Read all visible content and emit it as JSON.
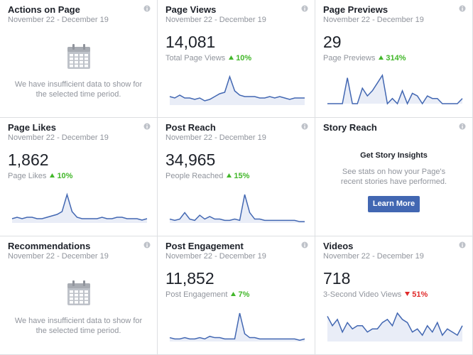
{
  "cards": [
    {
      "title": "Actions on Page",
      "date": "November 22 - December 19",
      "message": "We have insufficient data to show for the selected time period."
    },
    {
      "title": "Page Views",
      "date": "November 22 - December 19",
      "value": "14,081",
      "label": "Total Page Views",
      "change": "10%",
      "trend": "up",
      "spark": [
        6,
        5,
        7,
        5,
        5,
        4,
        5,
        3,
        4,
        6,
        8,
        9,
        20,
        10,
        7,
        6,
        6,
        6,
        5,
        5,
        6,
        5,
        6,
        5,
        4,
        5,
        5,
        5
      ]
    },
    {
      "title": "Page Previews",
      "date": "November 22 - December 19",
      "value": "29",
      "label": "Page Previews",
      "change": "314%",
      "trend": "up",
      "spark": [
        0,
        0,
        0,
        0,
        10,
        0,
        0,
        6,
        3,
        5,
        8,
        11,
        0,
        2,
        0,
        5,
        0,
        4,
        3,
        0,
        3,
        2,
        2,
        0,
        0,
        0,
        0,
        2
      ]
    },
    {
      "title": "Page Likes",
      "date": "November 22 - December 19",
      "value": "1,862",
      "label": "Page Likes",
      "change": "10%",
      "trend": "up",
      "spark": [
        3,
        4,
        3,
        4,
        4,
        3,
        3,
        4,
        5,
        6,
        8,
        20,
        8,
        4,
        3,
        3,
        3,
        3,
        4,
        3,
        3,
        4,
        4,
        3,
        3,
        3,
        2,
        3
      ]
    },
    {
      "title": "Post Reach",
      "date": "November 22 - December 19",
      "value": "34,965",
      "label": "People Reached",
      "change": "15%",
      "trend": "up",
      "spark": [
        3,
        2,
        3,
        8,
        3,
        2,
        6,
        3,
        5,
        3,
        3,
        2,
        2,
        3,
        2,
        22,
        8,
        3,
        3,
        2,
        2,
        2,
        2,
        2,
        2,
        2,
        1,
        1
      ]
    },
    {
      "title": "Story Reach",
      "heading": "Get Story Insights",
      "text": "See stats on how your Page's recent stories have performed.",
      "button": "Learn More"
    },
    {
      "title": "Recommendations",
      "date": "November 22 - December 19",
      "message": "We have insufficient data to show for the selected time period."
    },
    {
      "title": "Post Engagement",
      "date": "November 22 - December 19",
      "value": "11,852",
      "label": "Post Engagement",
      "change": "7%",
      "trend": "up",
      "spark": [
        3,
        2,
        2,
        3,
        2,
        2,
        3,
        2,
        4,
        3,
        3,
        2,
        2,
        2,
        22,
        6,
        3,
        3,
        2,
        2,
        2,
        2,
        2,
        2,
        2,
        2,
        1,
        2
      ]
    },
    {
      "title": "Videos",
      "date": "November 22 - December 19",
      "value": "718",
      "label": "3-Second Video Views",
      "change": "51%",
      "trend": "down",
      "spark": [
        8,
        5,
        7,
        3,
        6,
        4,
        5,
        5,
        3,
        4,
        4,
        6,
        7,
        5,
        9,
        7,
        6,
        3,
        4,
        2,
        5,
        3,
        6,
        2,
        4,
        3,
        2,
        5
      ]
    }
  ]
}
